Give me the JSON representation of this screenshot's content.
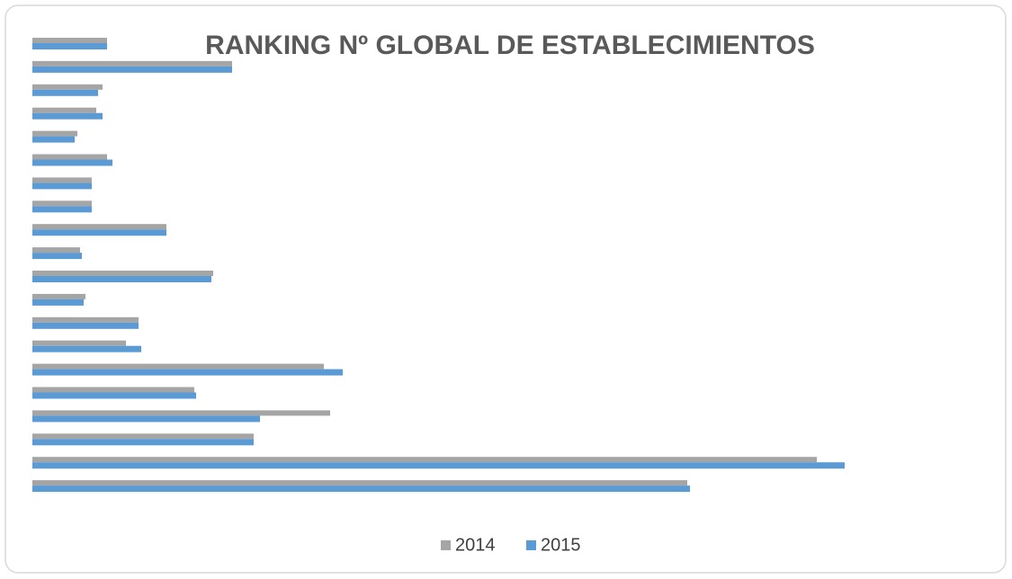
{
  "chart_data": {
    "type": "hbar",
    "title": "RANKING Nº GLOBAL DE ESTABLECIMIENTOS",
    "categories": [
      null,
      null,
      null,
      null,
      null,
      null,
      null,
      null,
      null,
      null,
      null,
      null,
      null,
      null,
      null,
      null,
      null,
      null,
      null,
      null
    ],
    "series": [
      {
        "name": "2014",
        "color": "#a5a5a5",
        "values": [
          83,
          222,
          78,
          71,
          50,
          83,
          66,
          66,
          149,
          53,
          201,
          59,
          118,
          104,
          324,
          180,
          331,
          246,
          872,
          728
        ]
      },
      {
        "name": "2015",
        "color": "#5b9bd5",
        "values": [
          83,
          222,
          73,
          78,
          47,
          89,
          66,
          66,
          149,
          55,
          199,
          57,
          118,
          121,
          345,
          182,
          253,
          246,
          903,
          731
        ]
      }
    ],
    "xlim": [
      0,
      1000
    ],
    "legend": "bottom"
  }
}
